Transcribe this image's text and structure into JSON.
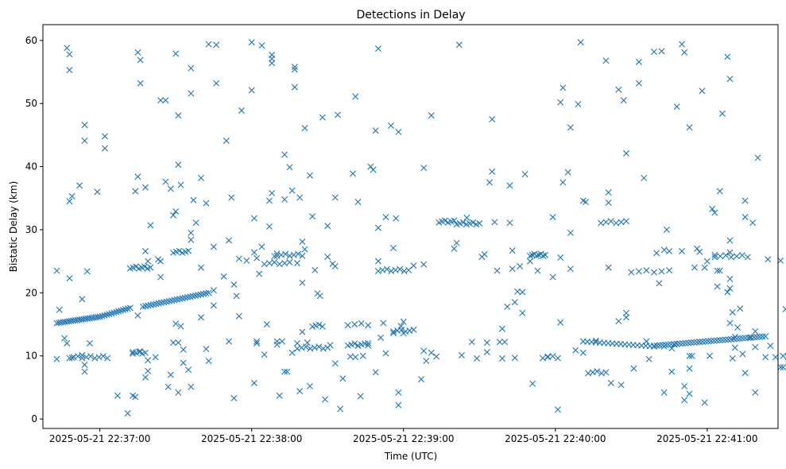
{
  "chart_data": {
    "type": "scatter",
    "title": "Detections in Delay",
    "xlabel": "Time (UTC)",
    "ylabel": "Bistatic Delay (km)",
    "x_unit": "seconds",
    "xlim": [
      -22.5,
      268
    ],
    "ylim": [
      -1.5,
      62.5
    ],
    "x_ticks": [
      {
        "value": 0,
        "label": "2025-05-21 22:37:00"
      },
      {
        "value": 60,
        "label": "2025-05-21 22:38:00"
      },
      {
        "value": 120,
        "label": "2025-05-21 22:39:00"
      },
      {
        "value": 180,
        "label": "2025-05-21 22:40:00"
      },
      {
        "value": 240,
        "label": "2025-05-21 22:41:00"
      }
    ],
    "y_ticks": [
      0,
      10,
      20,
      30,
      40,
      50,
      60
    ],
    "marker": "x",
    "color": "#1f77b4",
    "trend_segments": [
      {
        "x_start": -17,
        "x_end": 0,
        "y_start": 15.2,
        "y_end": 16.2,
        "count": 22
      },
      {
        "x_start": 0,
        "x_end": 12,
        "y_start": 16.2,
        "y_end": 17.6,
        "count": 14
      },
      {
        "x_start": 17,
        "x_end": 43,
        "y_start": 17.8,
        "y_end": 20.0,
        "count": 26
      },
      {
        "x_start": 191,
        "x_end": 219,
        "y_start": 12.3,
        "y_end": 11.5,
        "count": 18
      },
      {
        "x_start": 219,
        "x_end": 263,
        "y_start": 11.6,
        "y_end": 13.1,
        "count": 40
      }
    ],
    "clusters": [
      {
        "x_start": -12,
        "x_end": 3,
        "y": 9.8,
        "count": 10
      },
      {
        "x_start": 13,
        "x_end": 18,
        "y": 10.5,
        "count": 5
      },
      {
        "x_start": 12,
        "x_end": 20,
        "y": 24.0,
        "count": 8
      },
      {
        "x_start": 29,
        "x_end": 35,
        "y": 26.5,
        "count": 6
      },
      {
        "x_start": 65,
        "x_end": 75,
        "y": 24.7,
        "count": 6
      },
      {
        "x_start": 70,
        "x_end": 80,
        "y": 26.0,
        "count": 7
      },
      {
        "x_start": 78,
        "x_end": 90,
        "y": 11.3,
        "count": 8
      },
      {
        "x_start": 84,
        "x_end": 88,
        "y": 14.8,
        "count": 4
      },
      {
        "x_start": 98,
        "x_end": 106,
        "y": 11.8,
        "count": 7
      },
      {
        "x_start": 98,
        "x_end": 106,
        "y": 15.0,
        "count": 4
      },
      {
        "x_start": 110,
        "x_end": 122,
        "y": 23.6,
        "count": 8
      },
      {
        "x_start": 116,
        "x_end": 124,
        "y": 14.0,
        "count": 6
      },
      {
        "x_start": 134,
        "x_end": 140,
        "y": 31.3,
        "count": 6
      },
      {
        "x_start": 141,
        "x_end": 150,
        "y": 31.0,
        "count": 8
      },
      {
        "x_start": 170,
        "x_end": 176,
        "y": 26.0,
        "count": 8
      },
      {
        "x_start": 175,
        "x_end": 181,
        "y": 9.8,
        "count": 4
      },
      {
        "x_start": 193,
        "x_end": 200,
        "y": 7.4,
        "count": 5
      },
      {
        "x_start": 198,
        "x_end": 208,
        "y": 31.2,
        "count": 6
      },
      {
        "x_start": 210,
        "x_end": 225,
        "y": 23.4,
        "count": 6
      },
      {
        "x_start": 243,
        "x_end": 256,
        "y": 25.8,
        "count": 7
      }
    ],
    "points": [
      [
        -17,
        23.5
      ],
      [
        -16,
        17.3
      ],
      [
        -17,
        9.5
      ],
      [
        -13,
        58.8
      ],
      [
        -12,
        57.8
      ],
      [
        -12,
        55.3
      ],
      [
        -12,
        34.5
      ],
      [
        -11,
        35.3
      ],
      [
        -12,
        22.3
      ],
      [
        -14,
        12.8
      ],
      [
        -13,
        12.0
      ],
      [
        -11,
        9.7
      ],
      [
        -8,
        37.0
      ],
      [
        -7,
        19.0
      ],
      [
        -6,
        46.6
      ],
      [
        -6,
        44.1
      ],
      [
        -5,
        23.4
      ],
      [
        -6,
        8.6
      ],
      [
        -6,
        7.5
      ],
      [
        -1,
        36.0
      ],
      [
        2,
        44.8
      ],
      [
        2,
        42.9
      ],
      [
        7,
        3.7
      ],
      [
        11,
        0.9
      ],
      [
        13,
        10.6
      ],
      [
        14,
        36.1
      ],
      [
        15,
        58.1
      ],
      [
        16,
        56.9
      ],
      [
        16,
        53.2
      ],
      [
        15,
        38.4
      ],
      [
        15,
        16.4
      ],
      [
        13,
        3.7
      ],
      [
        14,
        3.5
      ],
      [
        16,
        10.7
      ],
      [
        18,
        26.6
      ],
      [
        19,
        25.0
      ],
      [
        18,
        36.7
      ],
      [
        20,
        30.7
      ],
      [
        19,
        9.3
      ],
      [
        19,
        7.6
      ],
      [
        18,
        6.6
      ],
      [
        24,
        50.5
      ],
      [
        26,
        50.5
      ],
      [
        26,
        37.6
      ],
      [
        24,
        22.5
      ],
      [
        28,
        36.5
      ],
      [
        23,
        25.3
      ],
      [
        24,
        25.0
      ],
      [
        22,
        9.8
      ],
      [
        27,
        5.1
      ],
      [
        28,
        7.0
      ],
      [
        30,
        57.9
      ],
      [
        30,
        32.9
      ],
      [
        29,
        32.3
      ],
      [
        31,
        48.1
      ],
      [
        31,
        40.3
      ],
      [
        32,
        37.1
      ],
      [
        30,
        15.1
      ],
      [
        32,
        14.7
      ],
      [
        29,
        12.1
      ],
      [
        31,
        12.1
      ],
      [
        31,
        4.2
      ],
      [
        33,
        11.0
      ],
      [
        33,
        8.9
      ],
      [
        35,
        7.8
      ],
      [
        36,
        55.6
      ],
      [
        36,
        51.6
      ],
      [
        36,
        29.5
      ],
      [
        36,
        28.4
      ],
      [
        37,
        34.7
      ],
      [
        38,
        31.1
      ],
      [
        36,
        5.1
      ],
      [
        40,
        38.2
      ],
      [
        40,
        24.0
      ],
      [
        40,
        16.1
      ],
      [
        42,
        11.1
      ],
      [
        43,
        9.2
      ],
      [
        42,
        34.2
      ],
      [
        43,
        59.4
      ],
      [
        46,
        59.3
      ],
      [
        46,
        53.2
      ],
      [
        45,
        27.3
      ],
      [
        45,
        20.4
      ],
      [
        45,
        18.0
      ],
      [
        49,
        22.6
      ],
      [
        50,
        44.1
      ],
      [
        51,
        28.3
      ],
      [
        51,
        12.3
      ],
      [
        52,
        35.1
      ],
      [
        53,
        3.3
      ],
      [
        53,
        21.3
      ],
      [
        54,
        19.5
      ],
      [
        55,
        16.3
      ],
      [
        55,
        25.4
      ],
      [
        56,
        48.9
      ],
      [
        58,
        25.1
      ],
      [
        60,
        59.7
      ],
      [
        60,
        52.1
      ],
      [
        61,
        31.8
      ],
      [
        61,
        26.4
      ],
      [
        61,
        5.7
      ],
      [
        62,
        25.5
      ],
      [
        63,
        23.0
      ],
      [
        62,
        12.3
      ],
      [
        62,
        12.0
      ],
      [
        64,
        59.2
      ],
      [
        64,
        27.3
      ],
      [
        65,
        10.2
      ],
      [
        66,
        15.0
      ],
      [
        67,
        34.6
      ],
      [
        67,
        30.5
      ],
      [
        68,
        57.7
      ],
      [
        68,
        57.1
      ],
      [
        68,
        56.4
      ],
      [
        68,
        35.8
      ],
      [
        69,
        25.8
      ],
      [
        70,
        26.2
      ],
      [
        70,
        12.3
      ],
      [
        70,
        11.8
      ],
      [
        71,
        3.7
      ],
      [
        72,
        12.3
      ],
      [
        73,
        41.9
      ],
      [
        73,
        34.8
      ],
      [
        73,
        7.5
      ],
      [
        74,
        7.5
      ],
      [
        75,
        39.9
      ],
      [
        76,
        36.2
      ],
      [
        76,
        10.5
      ],
      [
        77,
        55.8
      ],
      [
        77,
        55.4
      ],
      [
        77,
        52.6
      ],
      [
        78,
        24.7
      ],
      [
        78,
        12.0
      ],
      [
        79,
        35.1
      ],
      [
        79,
        4.4
      ],
      [
        80,
        28.1
      ],
      [
        80,
        21.6
      ],
      [
        80,
        13.8
      ],
      [
        81,
        46.1
      ],
      [
        81,
        26.9
      ],
      [
        82,
        12.1
      ],
      [
        83,
        38.6
      ],
      [
        83,
        5.2
      ],
      [
        84,
        32.1
      ],
      [
        85,
        23.6
      ],
      [
        86,
        19.9
      ],
      [
        87,
        19.5
      ],
      [
        88,
        47.8
      ],
      [
        89,
        3.1
      ],
      [
        90,
        30.6
      ],
      [
        90,
        25.7
      ],
      [
        91,
        11.7
      ],
      [
        92,
        24.6
      ],
      [
        93,
        24.2
      ],
      [
        93,
        8.8
      ],
      [
        93,
        35.1
      ],
      [
        94,
        48.2
      ],
      [
        95,
        1.6
      ],
      [
        96,
        6.4
      ],
      [
        99,
        9.9
      ],
      [
        100,
        38.9
      ],
      [
        101,
        51.1
      ],
      [
        101,
        9.8
      ],
      [
        102,
        34.4
      ],
      [
        103,
        3.6
      ],
      [
        102,
        11.6
      ],
      [
        104,
        10.0
      ],
      [
        106,
        12.0
      ],
      [
        107,
        40.0
      ],
      [
        108,
        39.5
      ],
      [
        109,
        45.7
      ],
      [
        110,
        58.7
      ],
      [
        110,
        30.3
      ],
      [
        110,
        25.0
      ],
      [
        109,
        7.4
      ],
      [
        111,
        12.9
      ],
      [
        112,
        15.2
      ],
      [
        113,
        10.4
      ],
      [
        113,
        32.0
      ],
      [
        115,
        46.5
      ],
      [
        116,
        13.6
      ],
      [
        116,
        27.1
      ],
      [
        117,
        31.8
      ],
      [
        118,
        45.5
      ],
      [
        118,
        4.2
      ],
      [
        118,
        2.2
      ],
      [
        119,
        14.7
      ],
      [
        120,
        15.4
      ],
      [
        120,
        13.6
      ],
      [
        124,
        24.3
      ],
      [
        127,
        6.3
      ],
      [
        128,
        39.8
      ],
      [
        128,
        24.5
      ],
      [
        128,
        10.8
      ],
      [
        129,
        9.2
      ],
      [
        131,
        48.1
      ],
      [
        131,
        10.5
      ],
      [
        133,
        9.9
      ],
      [
        140,
        27.0
      ],
      [
        141,
        27.9
      ],
      [
        142,
        59.3
      ],
      [
        143,
        10.1
      ],
      [
        145,
        31.9
      ],
      [
        147,
        12.2
      ],
      [
        149,
        9.6
      ],
      [
        151,
        25.7
      ],
      [
        152,
        26.1
      ],
      [
        153,
        10.6
      ],
      [
        153,
        12.1
      ],
      [
        154,
        37.5
      ],
      [
        155,
        39.2
      ],
      [
        155,
        47.5
      ],
      [
        156,
        31.2
      ],
      [
        157,
        23.5
      ],
      [
        158,
        12.2
      ],
      [
        159,
        14.3
      ],
      [
        160,
        12.2
      ],
      [
        159,
        9.6
      ],
      [
        161,
        17.8
      ],
      [
        162,
        37.0
      ],
      [
        162,
        31.1
      ],
      [
        163,
        26.7
      ],
      [
        163,
        23.8
      ],
      [
        164,
        18.5
      ],
      [
        164,
        9.7
      ],
      [
        165,
        20.2
      ],
      [
        166,
        24.2
      ],
      [
        167,
        20.1
      ],
      [
        167,
        16.8
      ],
      [
        168,
        38.8
      ],
      [
        170,
        25.0
      ],
      [
        171,
        5.6
      ],
      [
        173,
        23.5
      ],
      [
        177,
        9.9
      ],
      [
        179,
        32.0
      ],
      [
        179,
        22.5
      ],
      [
        181,
        1.5
      ],
      [
        182,
        50.2
      ],
      [
        182,
        25.6
      ],
      [
        182,
        15.3
      ],
      [
        183,
        52.5
      ],
      [
        183,
        37.5
      ],
      [
        185,
        39.1
      ],
      [
        186,
        46.2
      ],
      [
        186,
        29.5
      ],
      [
        186,
        23.8
      ],
      [
        188,
        10.9
      ],
      [
        189,
        49.9
      ],
      [
        190,
        59.7
      ],
      [
        191,
        34.6
      ],
      [
        191,
        10.5
      ],
      [
        192,
        34.4
      ],
      [
        196,
        12.4
      ],
      [
        200,
        56.8
      ],
      [
        201,
        35.9
      ],
      [
        201,
        34.3
      ],
      [
        201,
        24.0
      ],
      [
        202,
        5.7
      ],
      [
        205,
        52.2
      ],
      [
        205,
        15.5
      ],
      [
        206,
        5.4
      ],
      [
        207,
        50.5
      ],
      [
        208,
        42.1
      ],
      [
        208,
        16.8
      ],
      [
        208,
        16.1
      ],
      [
        211,
        8.0
      ],
      [
        213,
        56.6
      ],
      [
        213,
        53.2
      ],
      [
        215,
        38.2
      ],
      [
        216,
        12.3
      ],
      [
        217,
        9.5
      ],
      [
        219,
        58.2
      ],
      [
        220,
        26.3
      ],
      [
        221,
        21.5
      ],
      [
        222,
        58.3
      ],
      [
        223,
        26.8
      ],
      [
        223,
        11.5
      ],
      [
        223,
        4.2
      ],
      [
        224,
        30.0
      ],
      [
        225,
        26.6
      ],
      [
        226,
        11.2
      ],
      [
        226,
        7.5
      ],
      [
        227,
        11.8
      ],
      [
        228,
        49.5
      ],
      [
        230,
        59.4
      ],
      [
        230,
        26.6
      ],
      [
        231,
        58.1
      ],
      [
        231,
        5.2
      ],
      [
        231,
        3.0
      ],
      [
        233,
        46.2
      ],
      [
        233,
        10.0
      ],
      [
        233,
        4.0
      ],
      [
        233,
        8.0
      ],
      [
        234,
        10.0
      ],
      [
        235,
        24.0
      ],
      [
        236,
        27.0
      ],
      [
        237,
        26.5
      ],
      [
        237,
        12.2
      ],
      [
        238,
        52.0
      ],
      [
        239,
        24.0
      ],
      [
        239,
        2.6
      ],
      [
        240,
        25.0
      ],
      [
        241,
        10.0
      ],
      [
        242,
        33.3
      ],
      [
        243,
        32.7
      ],
      [
        243,
        26.0
      ],
      [
        244,
        23.5
      ],
      [
        244,
        21.0
      ],
      [
        245,
        36.1
      ],
      [
        245,
        23.5
      ],
      [
        246,
        48.4
      ],
      [
        248,
        57.4
      ],
      [
        248,
        20.1
      ],
      [
        249,
        53.9
      ],
      [
        249,
        28.3
      ],
      [
        249,
        26.4
      ],
      [
        249,
        22.2
      ],
      [
        249,
        20.7
      ],
      [
        249,
        15.2
      ],
      [
        250,
        16.9
      ],
      [
        250,
        9.6
      ],
      [
        251,
        13.0
      ],
      [
        251,
        11.3
      ],
      [
        252,
        14.5
      ],
      [
        253,
        17.5
      ],
      [
        254,
        10.3
      ],
      [
        255,
        34.6
      ],
      [
        255,
        32.0
      ],
      [
        255,
        7.3
      ],
      [
        257,
        12.9
      ],
      [
        258,
        31.1
      ],
      [
        259,
        13.9
      ],
      [
        259,
        11.4
      ],
      [
        259,
        4.2
      ],
      [
        260,
        41.4
      ],
      [
        263,
        9.8
      ],
      [
        264,
        25.3
      ],
      [
        265,
        11.6
      ],
      [
        267,
        9.8
      ],
      [
        269,
        25.1
      ],
      [
        269,
        8.2
      ],
      [
        270,
        8.2
      ],
      [
        270,
        10.0
      ],
      [
        271,
        17.4
      ],
      [
        272,
        9.8
      ],
      [
        -7,
        10.1
      ],
      [
        -4,
        12.0
      ]
    ]
  }
}
